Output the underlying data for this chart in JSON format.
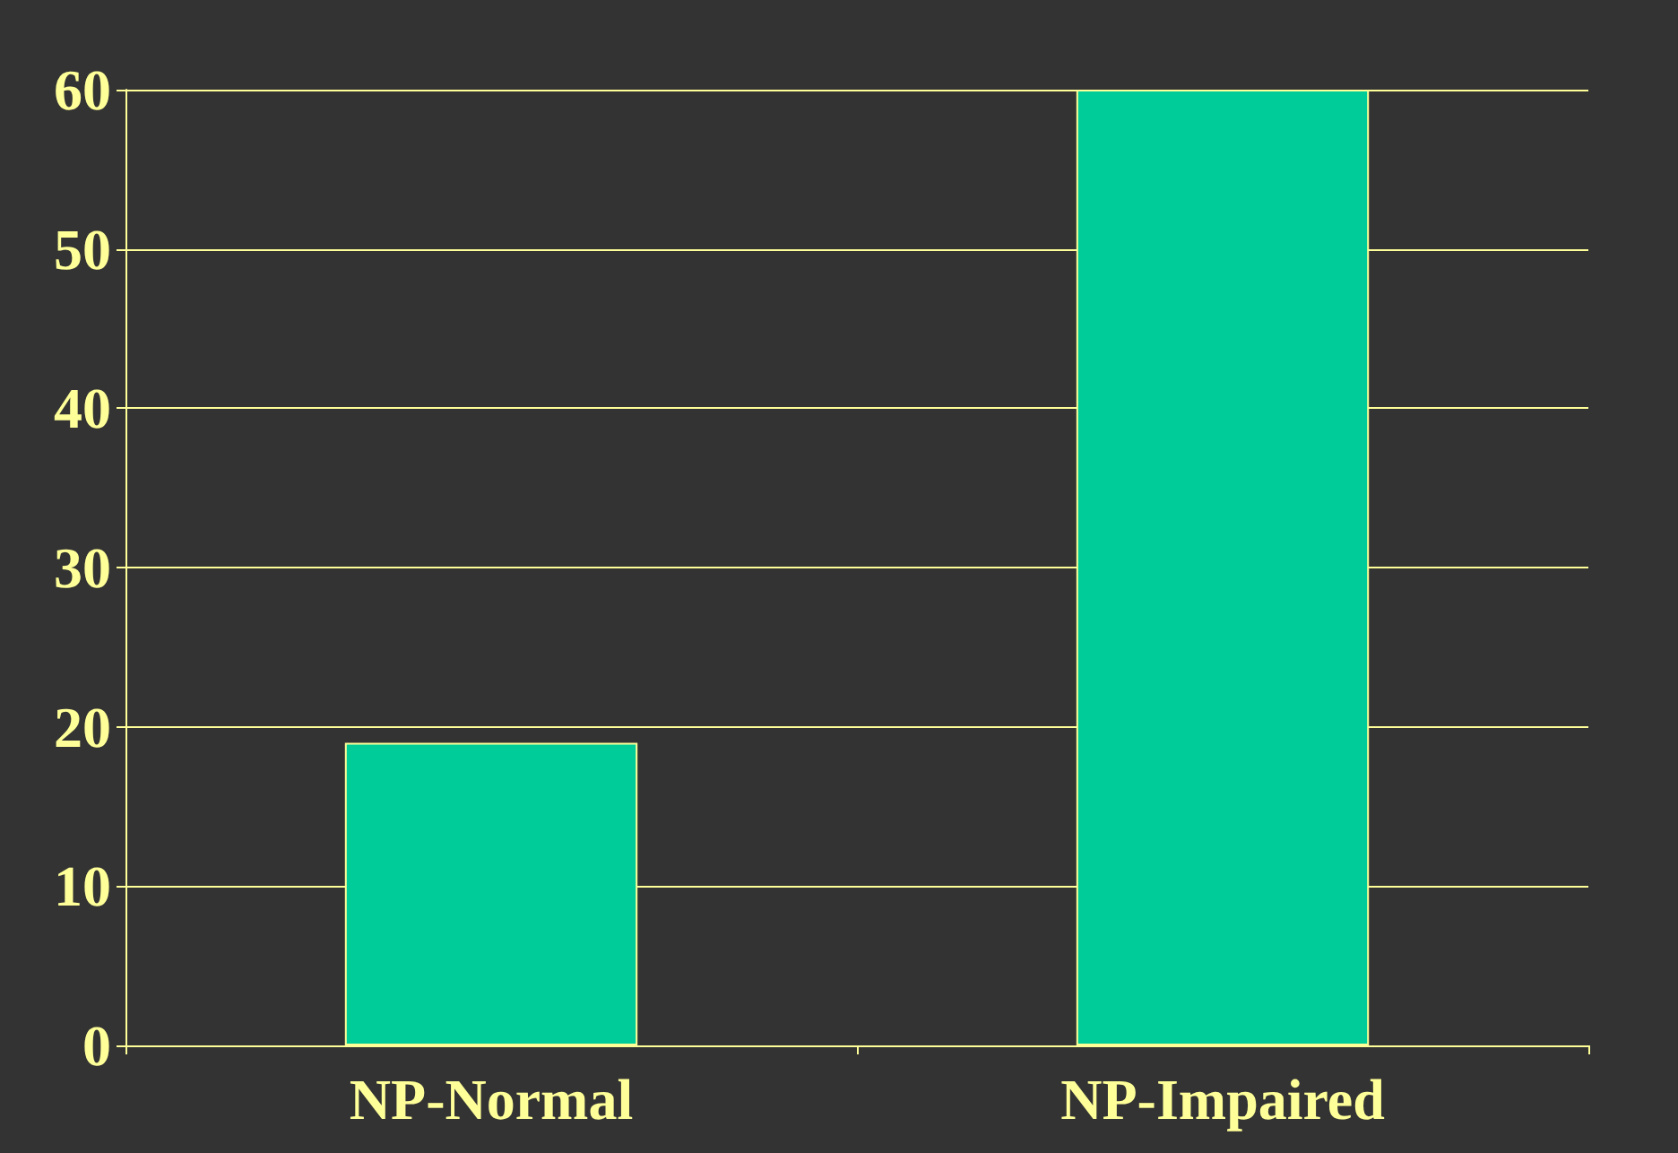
{
  "chart_data": {
    "type": "bar",
    "categories": [
      "NP-Normal",
      "NP-Impaired"
    ],
    "values": [
      19,
      60
    ],
    "color": "#00cc99",
    "ylim": [
      0,
      60
    ],
    "yticks": [
      0,
      10,
      20,
      30,
      40,
      50,
      60
    ],
    "grid": "y"
  }
}
